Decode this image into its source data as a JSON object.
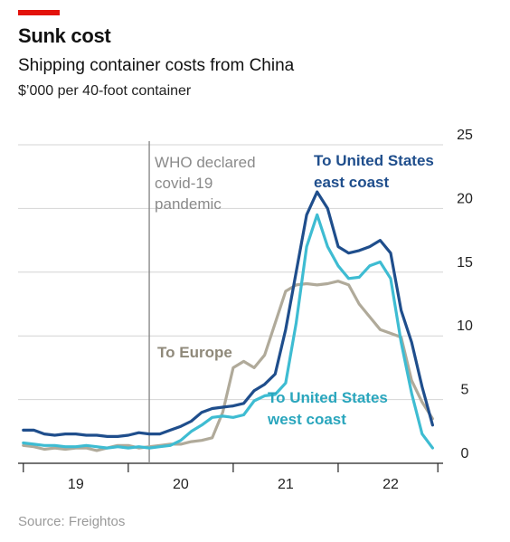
{
  "header": {
    "title": "Sunk cost",
    "subtitle": "Shipping container costs from China",
    "units": "$’000 per 40-foot container"
  },
  "source": "Source: Freightos",
  "chart_data": {
    "type": "line",
    "title": "Sunk cost",
    "subtitle": "Shipping container costs from China",
    "ylabel": "$’000 per 40-foot container",
    "ylim": [
      0,
      25
    ],
    "yticks": [
      "0",
      "5",
      "10",
      "15",
      "20",
      "25"
    ],
    "xlim": [
      2018.95,
      2023.0
    ],
    "xticks": [
      "19",
      "20",
      "21",
      "22"
    ],
    "xtick_years": [
      2019,
      2020,
      2021,
      2022
    ],
    "grid": true,
    "legend": "labels placed next to lines",
    "annotation": {
      "x": 2020.2,
      "lines": [
        "WHO declared",
        "covid-19",
        "pandemic"
      ]
    },
    "series": [
      {
        "name": "To United States east coast",
        "label_lines": [
          "To United States",
          "east coast"
        ],
        "color": "#1f4e8c",
        "x": [
          2019.0,
          2019.1,
          2019.2,
          2019.3,
          2019.4,
          2019.5,
          2019.6,
          2019.7,
          2019.8,
          2019.9,
          2020.0,
          2020.1,
          2020.2,
          2020.3,
          2020.4,
          2020.5,
          2020.6,
          2020.7,
          2020.8,
          2020.9,
          2021.0,
          2021.1,
          2021.2,
          2021.3,
          2021.4,
          2021.5,
          2021.6,
          2021.7,
          2021.8,
          2021.9,
          2022.0,
          2022.1,
          2022.2,
          2022.3,
          2022.4,
          2022.5,
          2022.6,
          2022.7,
          2022.8,
          2022.9
        ],
        "values": [
          2.6,
          2.6,
          2.3,
          2.2,
          2.3,
          2.3,
          2.2,
          2.2,
          2.1,
          2.1,
          2.2,
          2.4,
          2.3,
          2.3,
          2.6,
          2.9,
          3.3,
          4.0,
          4.3,
          4.4,
          4.5,
          4.7,
          5.7,
          6.2,
          7.0,
          10.5,
          15.0,
          19.5,
          21.3,
          20.0,
          17.0,
          16.5,
          16.7,
          17.0,
          17.5,
          16.5,
          12.0,
          9.5,
          6.0,
          3.0
        ]
      },
      {
        "name": "To United States west coast",
        "label_lines": [
          "To United States",
          "west coast"
        ],
        "color": "#3ebcd2",
        "x": [
          2019.0,
          2019.1,
          2019.2,
          2019.3,
          2019.4,
          2019.5,
          2019.6,
          2019.7,
          2019.8,
          2019.9,
          2020.0,
          2020.1,
          2020.2,
          2020.3,
          2020.4,
          2020.5,
          2020.6,
          2020.7,
          2020.8,
          2020.9,
          2021.0,
          2021.1,
          2021.2,
          2021.3,
          2021.4,
          2021.5,
          2021.6,
          2021.7,
          2021.8,
          2021.9,
          2022.0,
          2022.1,
          2022.2,
          2022.3,
          2022.4,
          2022.5,
          2022.6,
          2022.7,
          2022.8,
          2022.9
        ],
        "values": [
          1.6,
          1.5,
          1.4,
          1.4,
          1.3,
          1.3,
          1.4,
          1.3,
          1.2,
          1.3,
          1.2,
          1.3,
          1.2,
          1.3,
          1.4,
          1.8,
          2.5,
          3.0,
          3.6,
          3.7,
          3.6,
          3.8,
          4.9,
          5.3,
          5.4,
          6.3,
          11.0,
          17.0,
          19.5,
          17.0,
          15.5,
          14.5,
          14.6,
          15.5,
          15.8,
          14.5,
          9.5,
          5.5,
          2.3,
          1.2
        ]
      },
      {
        "name": "To Europe",
        "label_lines": [
          "To Europe"
        ],
        "color": "#b0aa9a",
        "x": [
          2019.0,
          2019.1,
          2019.2,
          2019.3,
          2019.4,
          2019.5,
          2019.6,
          2019.7,
          2019.8,
          2019.9,
          2020.0,
          2020.1,
          2020.2,
          2020.3,
          2020.4,
          2020.5,
          2020.6,
          2020.7,
          2020.8,
          2020.9,
          2021.0,
          2021.1,
          2021.2,
          2021.3,
          2021.4,
          2021.5,
          2021.6,
          2021.7,
          2021.8,
          2021.9,
          2022.0,
          2022.1,
          2022.2,
          2022.3,
          2022.4,
          2022.5,
          2022.6,
          2022.7,
          2022.8,
          2022.9
        ],
        "values": [
          1.4,
          1.3,
          1.1,
          1.2,
          1.1,
          1.2,
          1.2,
          1.0,
          1.2,
          1.4,
          1.4,
          1.2,
          1.3,
          1.4,
          1.5,
          1.5,
          1.7,
          1.8,
          2.0,
          4.0,
          7.5,
          8.0,
          7.5,
          8.5,
          11.0,
          13.5,
          14.0,
          14.1,
          14.0,
          14.1,
          14.3,
          14.0,
          12.5,
          11.5,
          10.5,
          10.2,
          9.9,
          6.5,
          4.8,
          3.5
        ]
      }
    ]
  }
}
